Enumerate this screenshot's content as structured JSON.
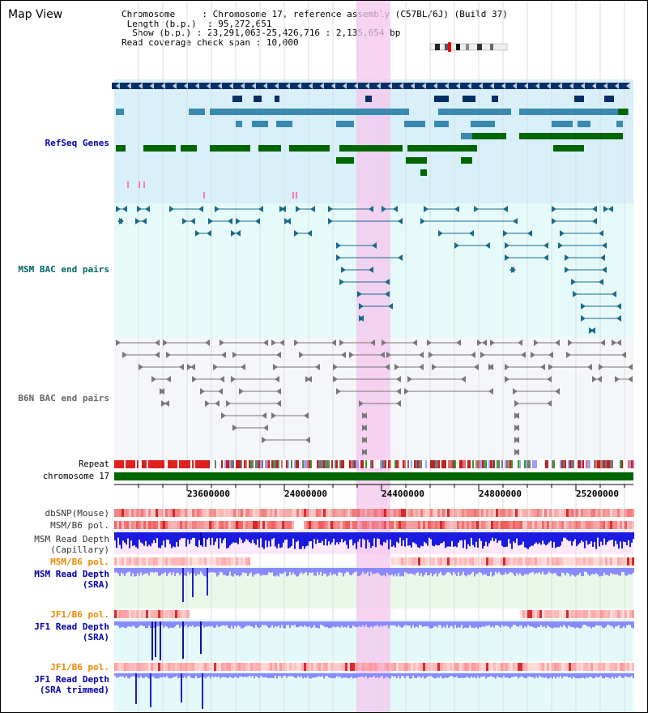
{
  "page": {
    "title": "Map View"
  },
  "info": {
    "chromosome_label": "Chromosome",
    "chromosome_value": "Chromosome 17, reference assembly (C57BL/6J) (Build 37)",
    "length_label": "Length (b.p.)",
    "length_value": "95,272,651",
    "show_label": "Show (b.p.)",
    "show_value": "23,291,063-25,426,716 : 2,135,654 bp",
    "span_label": "Read coverage check span",
    "span_value": "10,000"
  },
  "tracks": {
    "refseq": {
      "label": "RefSeq Genes",
      "color": "#0000aa"
    },
    "msm_bac": {
      "label": "MSM BAC end pairs",
      "color": "#006666"
    },
    "b6n_bac": {
      "label": "B6N BAC end pairs",
      "color": "#666666"
    },
    "repeat": {
      "label": "Repeat"
    },
    "chromosome": {
      "label": "chromosome 17"
    },
    "dbsnp": {
      "label": "dbSNP(Mouse)"
    },
    "msm_pol": {
      "label": "MSM/B6 pol."
    },
    "msm_depth_cap": {
      "label": "MSM Read Depth",
      "sublabel": "(Capillary)"
    },
    "msm_pol_sra": {
      "label": "MSM/B6 pol.",
      "color": "#ee8800"
    },
    "msm_depth_sra": {
      "label": "MSM Read Depth",
      "sublabel": "(SRA)",
      "color": "#0000aa"
    },
    "jf1_pol": {
      "label": "JF1/B6 pol.",
      "color": "#ee8800"
    },
    "jf1_depth": {
      "label": "JF1 Read Depth",
      "sublabel": "(SRA)",
      "color": "#0000aa"
    },
    "jf1_pol_trim": {
      "label": "JF1/B6 pol.",
      "color": "#ee8800"
    },
    "jf1_depth_trim": {
      "label": "JF1 Read Depth",
      "sublabel": "(SRA trimmed)",
      "color": "#0000aa"
    }
  },
  "axis": {
    "ticks": [
      "23600000",
      "24000000",
      "24400000",
      "24800000",
      "25200000"
    ]
  },
  "colors": {
    "gene_dark": "#0a2f66",
    "gene_mid": "#3a8ab0",
    "gene_green": "#006600",
    "highlight": "#f4c6ee",
    "refseq_bg": "#d9f0fa",
    "msm_bg": "#e6fafa",
    "b6n_bg": "#f5f6fa",
    "depth_blue": "#1a1ae0",
    "depth_light": "#8a8aff",
    "pol_red": "#ee3333"
  }
}
